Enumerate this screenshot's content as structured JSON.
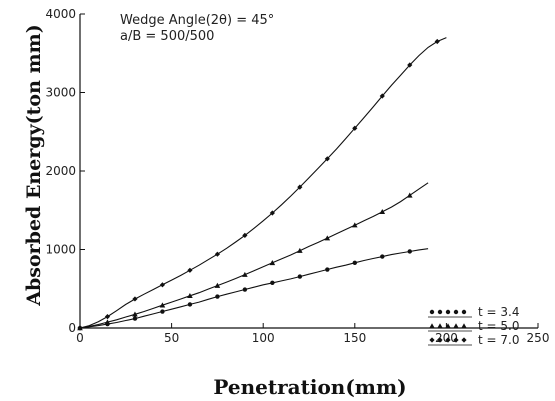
{
  "chart_data": {
    "type": "line",
    "xlabel": "Penetration(mm)",
    "ylabel": "Absorbed Energy(ton mm)",
    "xlim": [
      0,
      250
    ],
    "ylim": [
      0,
      4000
    ],
    "xticks": [
      "0",
      "50",
      "100",
      "150",
      "200",
      "250"
    ],
    "yticks": [
      "0",
      "1000",
      "2000",
      "3000",
      "4000"
    ],
    "annotations": [
      "Wedge Angle(2θ) = 45°",
      "a/B = 500/500"
    ],
    "grid": false,
    "legend_position": "bottom-right",
    "series": [
      {
        "name": "t = 3.4",
        "marker": "circle",
        "x": [
          0,
          5,
          10,
          15,
          20,
          25,
          30,
          35,
          40,
          45,
          50,
          55,
          60,
          65,
          70,
          75,
          80,
          85,
          90,
          95,
          100,
          105,
          110,
          115,
          120,
          125,
          130,
          135,
          140,
          145,
          150,
          155,
          160,
          165,
          170,
          175,
          180,
          185,
          190
        ],
        "y": [
          0,
          15,
          30,
          50,
          70,
          95,
          120,
          150,
          180,
          210,
          240,
          270,
          300,
          330,
          365,
          400,
          430,
          460,
          490,
          520,
          550,
          575,
          600,
          625,
          655,
          685,
          715,
          745,
          775,
          800,
          830,
          860,
          885,
          910,
          935,
          955,
          975,
          995,
          1010
        ]
      },
      {
        "name": "t = 5.0",
        "marker": "triangle",
        "x": [
          0,
          5,
          10,
          15,
          20,
          25,
          30,
          35,
          40,
          45,
          50,
          55,
          60,
          65,
          70,
          75,
          80,
          85,
          90,
          95,
          100,
          105,
          110,
          115,
          120,
          125,
          130,
          135,
          140,
          145,
          150,
          155,
          160,
          165,
          170,
          175,
          180,
          185,
          190
        ],
        "y": [
          0,
          20,
          45,
          75,
          105,
          140,
          175,
          210,
          250,
          290,
          330,
          370,
          410,
          450,
          495,
          540,
          585,
          630,
          680,
          730,
          780,
          830,
          880,
          930,
          985,
          1040,
          1090,
          1145,
          1200,
          1255,
          1310,
          1365,
          1420,
          1480,
          1540,
          1610,
          1690,
          1770,
          1850
        ]
      },
      {
        "name": "t = 7.0",
        "marker": "diamond",
        "x": [
          0,
          5,
          10,
          15,
          20,
          25,
          30,
          35,
          40,
          45,
          50,
          55,
          60,
          65,
          70,
          75,
          80,
          85,
          90,
          95,
          100,
          105,
          110,
          115,
          120,
          125,
          130,
          135,
          140,
          145,
          150,
          155,
          160,
          165,
          170,
          175,
          180,
          185,
          190,
          195,
          200
        ],
        "y": [
          0,
          30,
          80,
          145,
          220,
          300,
          370,
          430,
          490,
          550,
          610,
          670,
          735,
          800,
          870,
          940,
          1015,
          1095,
          1180,
          1270,
          1365,
          1465,
          1570,
          1680,
          1795,
          1915,
          2035,
          2155,
          2280,
          2410,
          2545,
          2680,
          2815,
          2955,
          3090,
          3220,
          3350,
          3470,
          3575,
          3650,
          3700
        ]
      }
    ]
  }
}
